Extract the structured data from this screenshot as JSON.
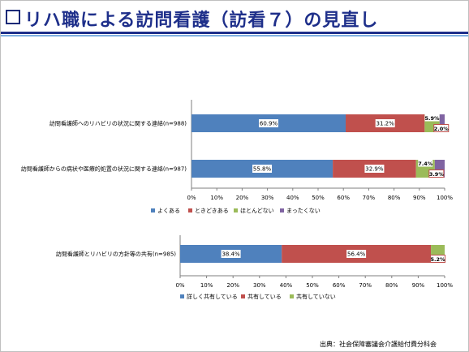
{
  "slide": {
    "title": "リハ職による訪問看護（訪看７）の見直し",
    "source": "出典：社会保障審議会介護給付費分科会"
  },
  "chart_data": [
    {
      "type": "bar",
      "orientation": "horizontal",
      "stacked": true,
      "categories": [
        "訪問看護師へのリハビリの状況に関する連絡(n=988)",
        "訪問看護師からの病状や医療的処置の状況に関する連絡(n=987)"
      ],
      "series": [
        {
          "name": "よくある",
          "values": [
            60.9,
            55.8
          ],
          "color": "#4f81bd"
        },
        {
          "name": "ときどきある",
          "values": [
            31.2,
            32.9
          ],
          "color": "#c0504d"
        },
        {
          "name": "ほとんどない",
          "values": [
            5.9,
            7.4
          ],
          "color": "#9bbb59"
        },
        {
          "name": "まったくない",
          "values": [
            2.0,
            3.9
          ],
          "color": "#8064a2"
        }
      ],
      "data_labels": [
        [
          "60.9%",
          "31.2%",
          "5.9%",
          "2.0%"
        ],
        [
          "55.8%",
          "32.9%",
          "7.4%",
          "3.9%"
        ]
      ],
      "xticks": [
        "0%",
        "10%",
        "20%",
        "30%",
        "40%",
        "50%",
        "60%",
        "70%",
        "80%",
        "90%",
        "100%"
      ],
      "xlim": [
        0,
        100
      ],
      "grid": false,
      "legend_placement": "bottom"
    },
    {
      "type": "bar",
      "orientation": "horizontal",
      "stacked": true,
      "categories": [
        "訪問看護師とリハビリの方針等の共有(n=985)"
      ],
      "series": [
        {
          "name": "詳しく共有している",
          "values": [
            38.4
          ],
          "color": "#4f81bd"
        },
        {
          "name": "共有している",
          "values": [
            56.4
          ],
          "color": "#c0504d"
        },
        {
          "name": "共有していない",
          "values": [
            5.2
          ],
          "color": "#9bbb59"
        }
      ],
      "data_labels": [
        [
          "38.4%",
          "56.4%",
          "5.2%"
        ]
      ],
      "xticks": [
        "0%",
        "10%",
        "20%",
        "30%",
        "40%",
        "50%",
        "60%",
        "70%",
        "80%",
        "90%",
        "100%"
      ],
      "xlim": [
        0,
        100
      ],
      "grid": false,
      "legend_placement": "bottom"
    }
  ]
}
